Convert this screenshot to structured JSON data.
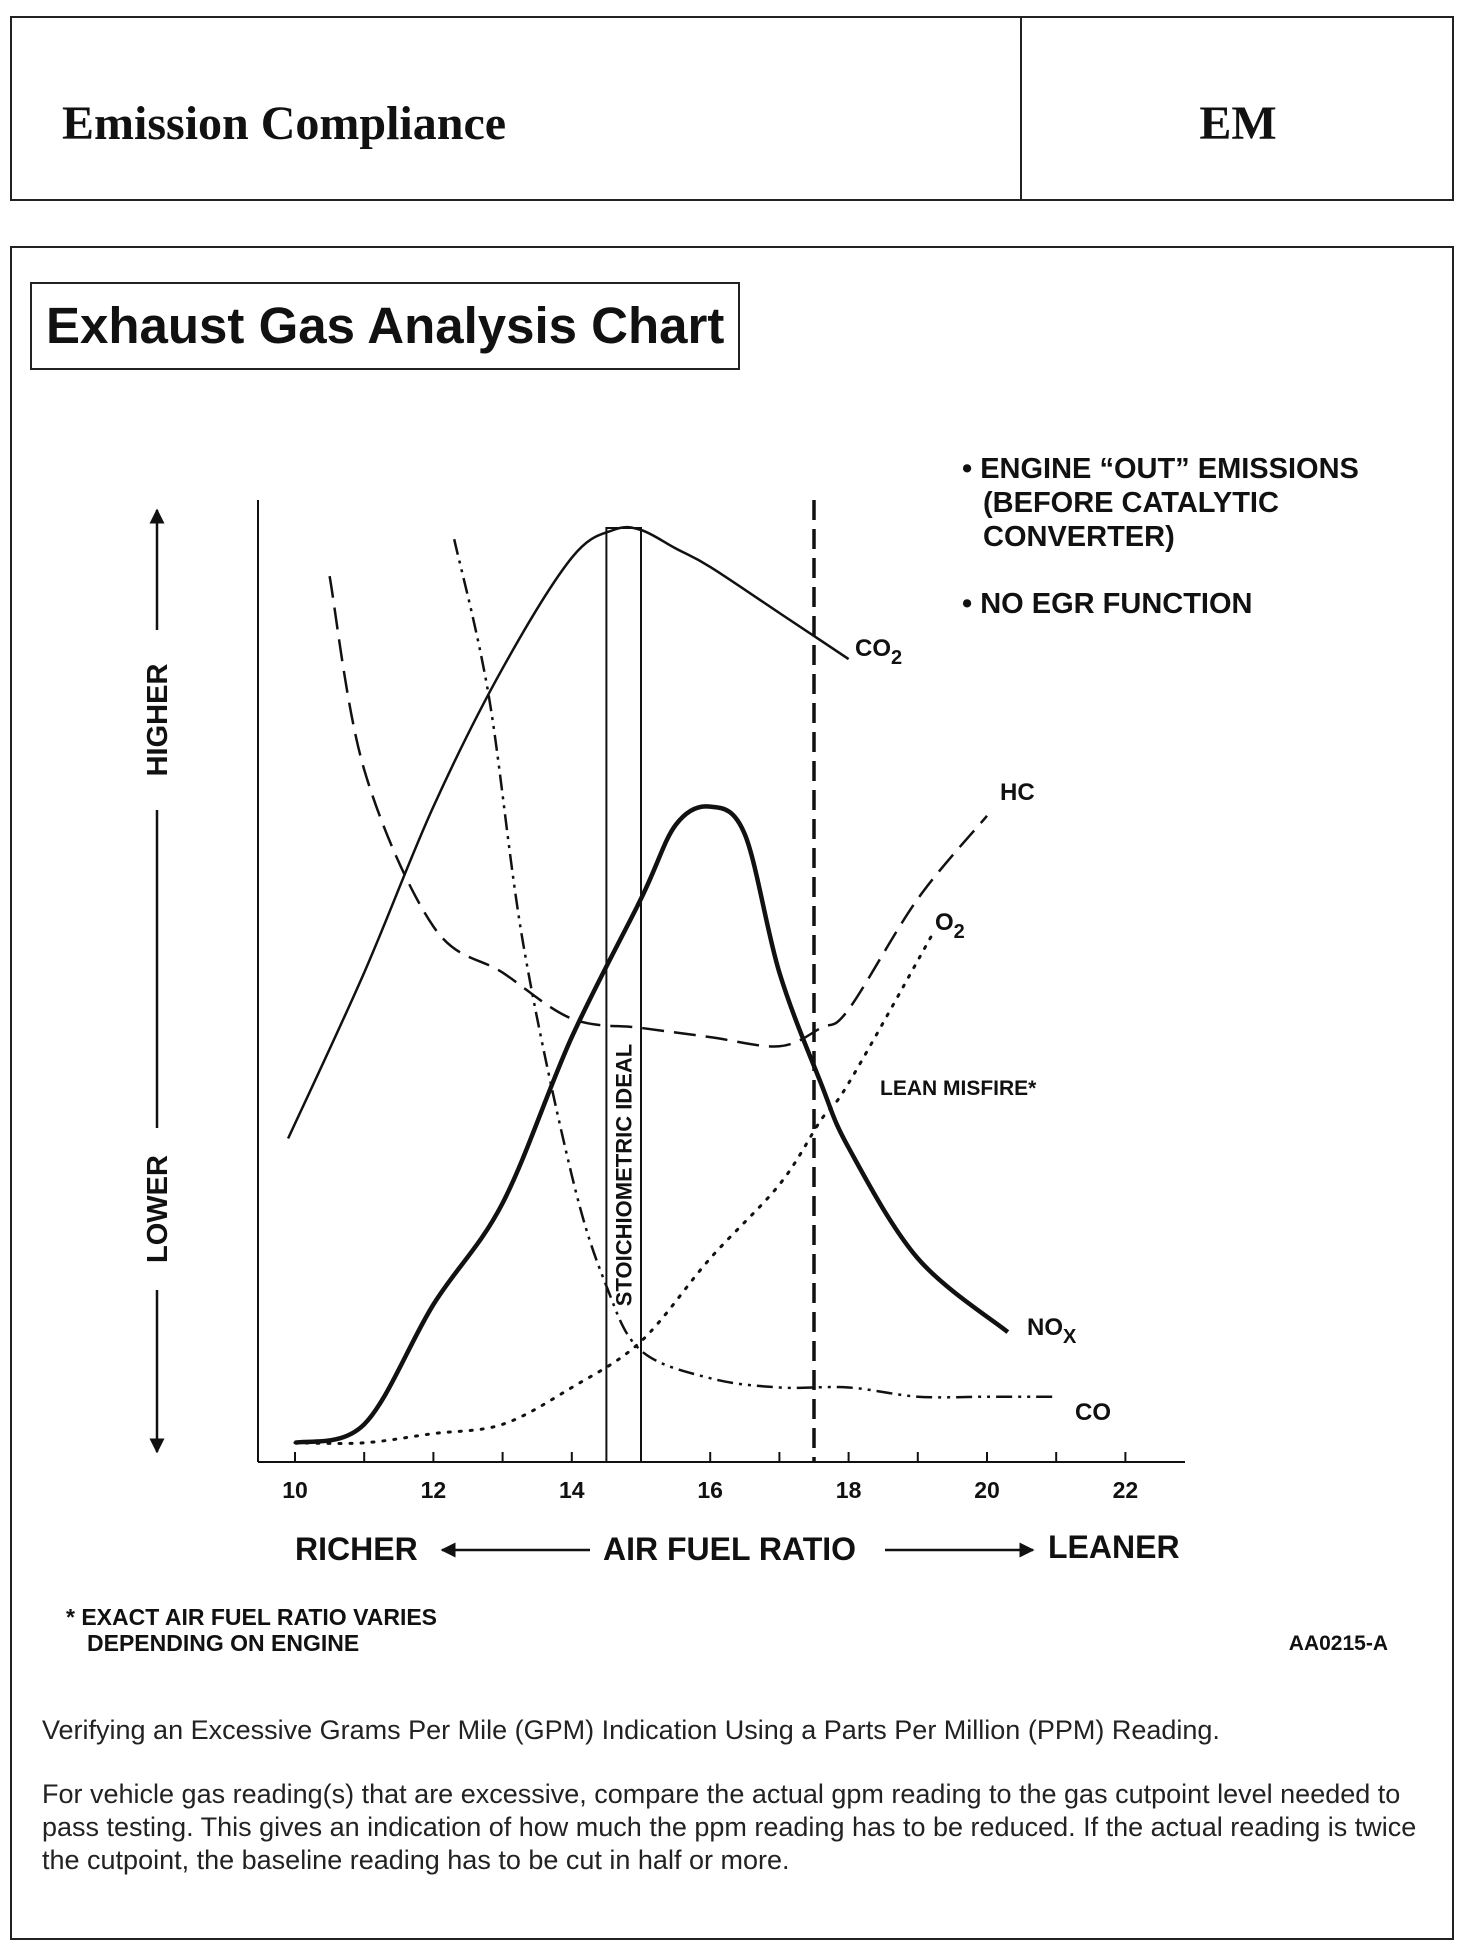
{
  "header": {
    "title": "Emission Compliance",
    "code": "EM"
  },
  "chart_data": {
    "type": "line",
    "title": "Exhaust Gas Analysis Chart",
    "xlabel": "AIR FUEL RATIO",
    "x_left_label": "RICHER",
    "x_right_label": "LEANER",
    "y_low_label": "LOWER",
    "y_high_label": "HIGHER",
    "xlim": [
      9.5,
      23
    ],
    "ylim": [
      0,
      100
    ],
    "x_ticks": [
      10,
      11,
      12,
      13,
      14,
      15,
      16,
      17,
      18,
      19,
      20,
      21,
      22
    ],
    "x_tick_labels": [
      "10",
      "12",
      "14",
      "16",
      "18",
      "20",
      "22"
    ],
    "x_tick_label_values": [
      10,
      12,
      14,
      16,
      18,
      20,
      22
    ],
    "stoichiometric": {
      "label": "STOICHIOMETRIC IDEAL",
      "x_from": 14.5,
      "x_to": 15.0
    },
    "lean_misfire": {
      "label": "LEAN MISFIRE*",
      "x": 17.5
    },
    "notes": [
      "• ENGINE “OUT” EMISSIONS",
      "(BEFORE CATALYTIC",
      "CONVERTER)",
      "• NO EGR FUNCTION"
    ],
    "series": [
      {
        "name": "CO2",
        "style": "solid",
        "x": [
          9.9,
          11,
          12,
          13,
          14,
          14.6,
          15,
          15.5,
          16,
          17,
          17.6,
          18
        ],
        "y": [
          34,
          52,
          70,
          85,
          97,
          100,
          100,
          98,
          96,
          91,
          88,
          86
        ]
      },
      {
        "name": "HC",
        "style": "dashed",
        "x": [
          10.5,
          11,
          12,
          13,
          14,
          15,
          16,
          17,
          17.6,
          18,
          19,
          20
        ],
        "y": [
          95,
          74,
          57,
          52,
          47,
          46,
          45,
          44,
          46,
          48,
          60,
          69
        ]
      },
      {
        "name": "O2",
        "style": "dotted",
        "x": [
          10,
          11,
          12,
          13,
          14,
          15,
          16,
          17,
          17.6,
          18,
          19.2
        ],
        "y": [
          1,
          1,
          2,
          3,
          7,
          12,
          21,
          29,
          36,
          40,
          56
        ]
      },
      {
        "name": "NOX",
        "style": "bold",
        "x": [
          10,
          11,
          12,
          13,
          14,
          15,
          15.5,
          16,
          16.5,
          17,
          17.6,
          18,
          19,
          20.3
        ],
        "y": [
          1,
          3,
          16,
          27,
          45,
          60,
          68,
          70,
          67,
          52,
          40,
          33,
          21,
          13
        ]
      },
      {
        "name": "CO",
        "style": "dash-dot",
        "x": [
          12.3,
          12.8,
          13.3,
          14,
          14.5,
          15,
          16,
          17,
          18,
          19,
          20,
          21
        ],
        "y": [
          99,
          82,
          55,
          30,
          18,
          11,
          8,
          7,
          7,
          6,
          6,
          6
        ]
      }
    ],
    "footnote_lines": [
      "* EXACT AIR FUEL RATIO VARIES",
      "DEPENDING ON ENGINE"
    ],
    "figure_id": "AA0215-A"
  },
  "text": {
    "heading": "Verifying an Excessive Grams Per Mile (GPM) Indication Using a Parts Per Million (PPM) Reading.",
    "body": "For vehicle gas reading(s) that are excessive, compare the actual gpm reading to the gas cutpoint level needed to pass testing. This gives an indication of how much the ppm reading has to be reduced.  If the actual reading is twice the cutpoint, the baseline reading has to be cut in half or more."
  }
}
